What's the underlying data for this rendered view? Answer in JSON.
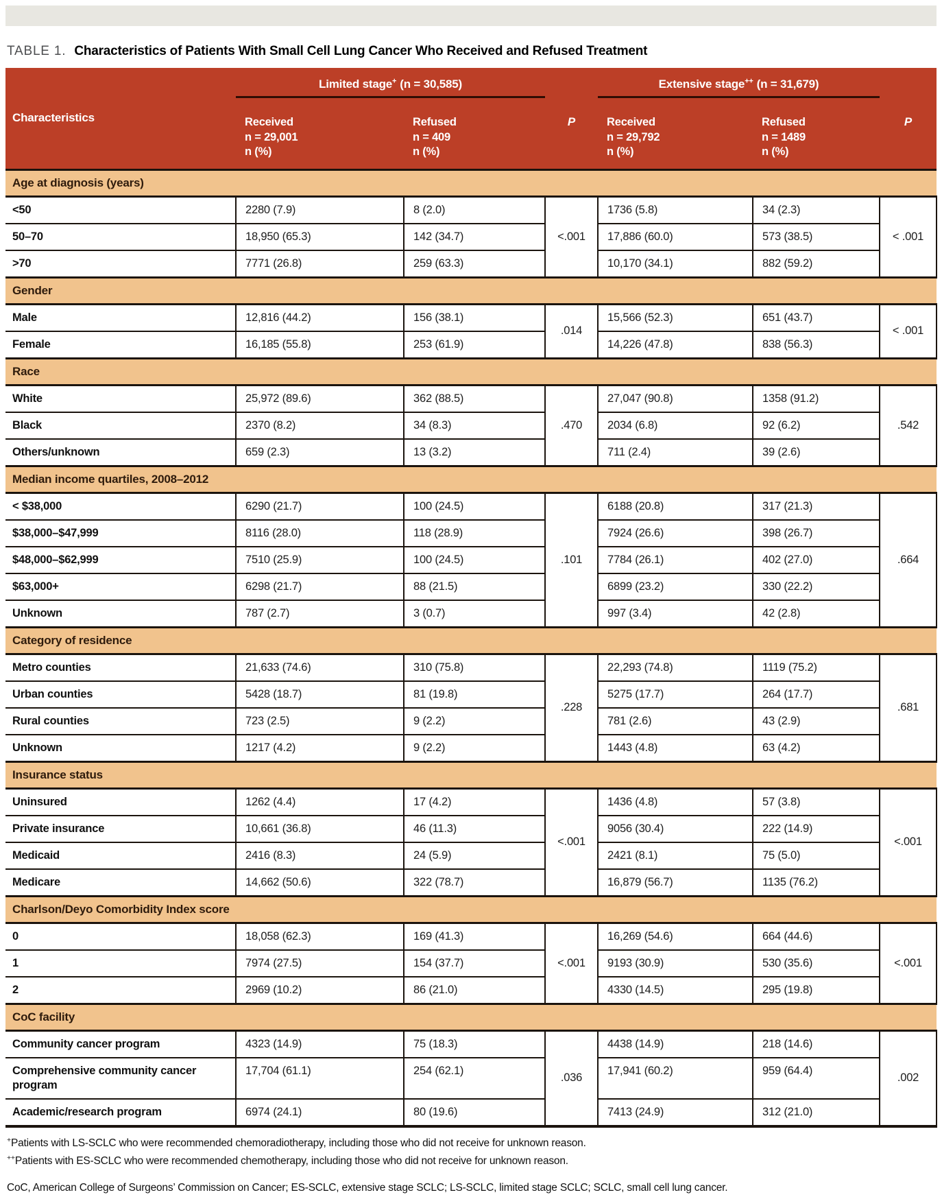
{
  "colors": {
    "header_bg": "#bc3f27",
    "section_bg": "#f1c38d",
    "section_text": "#2e1b0c",
    "border_color": "#1b140e",
    "underline_color": "#300d03",
    "topbar_bg": "#e8e7e1",
    "title_gray": "#4d4e50",
    "text_color": "#1c1c1c"
  },
  "page": {
    "table_label": "TABLE 1.",
    "table_title": "Characteristics of Patients With Small Cell Lung Cancer Who Received and Refused Treatment"
  },
  "header": {
    "characteristics_label": "Characteristics",
    "p_label": "P",
    "groups": [
      {
        "name": "Limited stage",
        "sup": "+",
        "count": "(n = 30,585)",
        "received": "Received\nn = 29,001\nn (%)",
        "refused": "Refused\nn = 409\nn (%)"
      },
      {
        "name": "Extensive stage",
        "sup": "++",
        "count": "(n = 31,679)",
        "received": "Received\nn = 29,792\nn (%)",
        "refused": "Refused\nn = 1489\nn (%)"
      }
    ]
  },
  "table": {
    "sections": [
      {
        "title": "Age at diagnosis (years)",
        "p_limited": "<.001",
        "p_extensive": "< .001",
        "rows": [
          {
            "label": "<50",
            "cells": [
              "2280 (7.9)",
              "8 (2.0)",
              "1736 (5.8)",
              "34 (2.3)"
            ]
          },
          {
            "label": "50–70",
            "cells": [
              "18,950 (65.3)",
              "142 (34.7)",
              "17,886 (60.0)",
              "573 (38.5)"
            ]
          },
          {
            "label": ">70",
            "cells": [
              "7771 (26.8)",
              "259 (63.3)",
              "10,170 (34.1)",
              "882 (59.2)"
            ]
          }
        ]
      },
      {
        "title": "Gender",
        "p_limited": ".014",
        "p_extensive": "< .001",
        "rows": [
          {
            "label": "Male",
            "cells": [
              "12,816 (44.2)",
              "156 (38.1)",
              "15,566 (52.3)",
              "651 (43.7)"
            ]
          },
          {
            "label": "Female",
            "cells": [
              "16,185 (55.8)",
              "253 (61.9)",
              "14,226 (47.8)",
              "838 (56.3)"
            ]
          }
        ]
      },
      {
        "title": "Race",
        "p_limited": ".470",
        "p_extensive": ".542",
        "rows": [
          {
            "label": "White",
            "cells": [
              "25,972 (89.6)",
              "362 (88.5)",
              "27,047 (90.8)",
              "1358 (91.2)"
            ]
          },
          {
            "label": "Black",
            "cells": [
              "2370 (8.2)",
              "34 (8.3)",
              "2034 (6.8)",
              "92 (6.2)"
            ]
          },
          {
            "label": "Others/unknown",
            "cells": [
              "659 (2.3)",
              "13 (3.2)",
              "711 (2.4)",
              "39 (2.6)"
            ]
          }
        ]
      },
      {
        "title": "Median income quartiles, 2008–2012",
        "p_limited": ".101",
        "p_extensive": ".664",
        "rows": [
          {
            "label": "< $38,000",
            "cells": [
              "6290 (21.7)",
              "100 (24.5)",
              "6188 (20.8)",
              "317 (21.3)"
            ]
          },
          {
            "label": "$38,000–$47,999",
            "cells": [
              "8116 (28.0)",
              "118 (28.9)",
              "7924 (26.6)",
              "398 (26.7)"
            ]
          },
          {
            "label": "$48,000–$62,999",
            "cells": [
              "7510 (25.9)",
              "100 (24.5)",
              "7784 (26.1)",
              "402 (27.0)"
            ]
          },
          {
            "label": "$63,000+",
            "cells": [
              "6298 (21.7)",
              "88 (21.5)",
              "6899 (23.2)",
              "330 (22.2)"
            ]
          },
          {
            "label": "Unknown",
            "cells": [
              "787 (2.7)",
              "3 (0.7)",
              "997 (3.4)",
              "42 (2.8)"
            ]
          }
        ]
      },
      {
        "title": "Category of residence",
        "p_limited": ".228",
        "p_extensive": ".681",
        "rows": [
          {
            "label": "Metro counties",
            "cells": [
              "21,633 (74.6)",
              "310 (75.8)",
              "22,293 (74.8)",
              "1119 (75.2)"
            ]
          },
          {
            "label": "Urban counties",
            "cells": [
              "5428 (18.7)",
              "81 (19.8)",
              "5275 (17.7)",
              "264 (17.7)"
            ]
          },
          {
            "label": "Rural counties",
            "cells": [
              "723 (2.5)",
              "9 (2.2)",
              "781 (2.6)",
              "43 (2.9)"
            ]
          },
          {
            "label": "Unknown",
            "cells": [
              "1217 (4.2)",
              "9 (2.2)",
              "1443 (4.8)",
              "63 (4.2)"
            ]
          }
        ]
      },
      {
        "title": "Insurance status",
        "p_limited": "<.001",
        "p_extensive": "<.001",
        "rows": [
          {
            "label": "Uninsured",
            "cells": [
              "1262 (4.4)",
              "17 (4.2)",
              "1436 (4.8)",
              "57 (3.8)"
            ]
          },
          {
            "label": "Private insurance",
            "cells": [
              "10,661 (36.8)",
              "46 (11.3)",
              "9056 (30.4)",
              "222 (14.9)"
            ]
          },
          {
            "label": "Medicaid",
            "cells": [
              "2416 (8.3)",
              "24 (5.9)",
              "2421 (8.1)",
              "75 (5.0)"
            ]
          },
          {
            "label": "Medicare",
            "cells": [
              "14,662 (50.6)",
              "322 (78.7)",
              "16,879 (56.7)",
              "1135 (76.2)"
            ]
          }
        ]
      },
      {
        "title": "Charlson/Deyo Comorbidity Index score",
        "p_limited": "<.001",
        "p_extensive": "<.001",
        "rows": [
          {
            "label": "0",
            "cells": [
              "18,058 (62.3)",
              "169 (41.3)",
              "16,269 (54.6)",
              "664 (44.6)"
            ]
          },
          {
            "label": "1",
            "cells": [
              "7974 (27.5)",
              "154 (37.7)",
              "9193 (30.9)",
              "530 (35.6)"
            ]
          },
          {
            "label": "2",
            "cells": [
              "2969 (10.2)",
              "86 (21.0)",
              "4330 (14.5)",
              "295 (19.8)"
            ]
          }
        ]
      },
      {
        "title": "CoC facility",
        "p_limited": ".036",
        "p_extensive": ".002",
        "rows": [
          {
            "label": "Community cancer program",
            "cells": [
              "4323 (14.9)",
              "75 (18.3)",
              "4438 (14.9)",
              "218 (14.6)"
            ]
          },
          {
            "label": "Comprehensive community cancer program",
            "cells": [
              "17,704 (61.1)",
              "254 (62.1)",
              "17,941 (60.2)",
              "959 (64.4)"
            ]
          },
          {
            "label": "Academic/research program",
            "cells": [
              "6974 (24.1)",
              "80 (19.6)",
              "7413 (24.9)",
              "312 (21.0)"
            ]
          }
        ]
      }
    ]
  },
  "footnotes": [
    {
      "sup": "+",
      "text": "Patients with LS-SCLC who were recommended chemoradiotherapy, including those who did not receive for unknown reason."
    },
    {
      "sup": "++",
      "text": "Patients with ES-SCLC who were recommended chemotherapy, including those who did not receive for unknown reason."
    },
    {
      "sup": "",
      "text": "CoC, American College of Surgeons’ Commission on Cancer; ES-SCLC, extensive stage SCLC; LS-SCLC, limited stage SCLC; SCLC, small cell lung cancer."
    }
  ]
}
